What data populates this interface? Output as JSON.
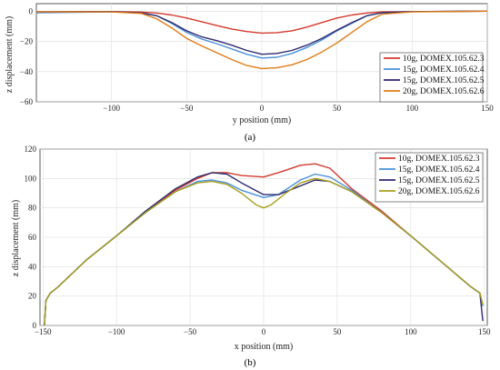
{
  "chart_data": [
    {
      "type": "line",
      "caption": "(a)",
      "xlabel": "y position (mm)",
      "ylabel": "z displacement (mm)",
      "xlim": [
        -150,
        150
      ],
      "ylim": [
        -60,
        5
      ],
      "xticks": [
        -100,
        -50,
        0,
        50,
        100,
        150
      ],
      "yticks": [
        0,
        -20,
        -40,
        -60
      ],
      "grid": true,
      "legend_position": "bottom-right",
      "series": [
        {
          "name": "10g, DOMEX.105.62.3",
          "color": "#d23a2e",
          "points": [
            [
              -150,
              -0.5
            ],
            [
              -100,
              -0.3
            ],
            [
              -80,
              -0.6
            ],
            [
              -70,
              -1.2
            ],
            [
              -60,
              -2.5
            ],
            [
              -50,
              -4.5
            ],
            [
              -40,
              -7.0
            ],
            [
              -30,
              -9.5
            ],
            [
              -20,
              -11.8
            ],
            [
              -10,
              -13.5
            ],
            [
              0,
              -14.5
            ],
            [
              10,
              -14.2
            ],
            [
              20,
              -13.0
            ],
            [
              30,
              -10.5
            ],
            [
              40,
              -7.5
            ],
            [
              50,
              -4.5
            ],
            [
              60,
              -2.5
            ],
            [
              70,
              -1.2
            ],
            [
              80,
              -0.5
            ],
            [
              100,
              -0.3
            ],
            [
              150,
              0
            ]
          ]
        },
        {
          "name": "15g, DOMEX.105.62.4",
          "color": "#4a90d9",
          "points": [
            [
              -150,
              -1
            ],
            [
              -100,
              -0.5
            ],
            [
              -80,
              -1.2
            ],
            [
              -70,
              -3
            ],
            [
              -60,
              -8
            ],
            [
              -50,
              -14
            ],
            [
              -40,
              -18.5
            ],
            [
              -30,
              -21.5
            ],
            [
              -20,
              -25
            ],
            [
              -10,
              -28.5
            ],
            [
              0,
              -31
            ],
            [
              10,
              -30.5
            ],
            [
              20,
              -28
            ],
            [
              30,
              -24
            ],
            [
              40,
              -19
            ],
            [
              50,
              -13
            ],
            [
              60,
              -8
            ],
            [
              70,
              -3
            ],
            [
              80,
              -1
            ],
            [
              100,
              -0.3
            ],
            [
              150,
              0
            ]
          ]
        },
        {
          "name": "15g, DOMEX.105.62.5",
          "color": "#2e2a6e",
          "points": [
            [
              -150,
              -0.5
            ],
            [
              -100,
              -0.3
            ],
            [
              -80,
              -1.2
            ],
            [
              -70,
              -3
            ],
            [
              -60,
              -7.5
            ],
            [
              -50,
              -13
            ],
            [
              -40,
              -17
            ],
            [
              -30,
              -19.5
            ],
            [
              -20,
              -22.5
            ],
            [
              -10,
              -26
            ],
            [
              0,
              -28.5
            ],
            [
              10,
              -28
            ],
            [
              20,
              -26
            ],
            [
              30,
              -22.5
            ],
            [
              40,
              -18
            ],
            [
              50,
              -12.5
            ],
            [
              60,
              -7.5
            ],
            [
              70,
              -3
            ],
            [
              80,
              -1
            ],
            [
              100,
              -0.3
            ],
            [
              150,
              0
            ]
          ]
        },
        {
          "name": "20g, DOMEX.105.62.6",
          "color": "#e07b16",
          "points": [
            [
              -150,
              -0.5
            ],
            [
              -100,
              -0.5
            ],
            [
              -80,
              -1.5
            ],
            [
              -70,
              -5
            ],
            [
              -60,
              -11
            ],
            [
              -50,
              -18
            ],
            [
              -40,
              -23
            ],
            [
              -30,
              -27.5
            ],
            [
              -20,
              -32
            ],
            [
              -10,
              -36
            ],
            [
              0,
              -38
            ],
            [
              10,
              -37.5
            ],
            [
              20,
              -35.5
            ],
            [
              30,
              -32
            ],
            [
              40,
              -27
            ],
            [
              50,
              -21
            ],
            [
              60,
              -14
            ],
            [
              70,
              -7
            ],
            [
              80,
              -2
            ],
            [
              100,
              -0.5
            ],
            [
              150,
              0
            ]
          ]
        }
      ]
    },
    {
      "type": "line",
      "caption": "(b)",
      "xlabel": "x position (mm)",
      "ylabel": "z displacement (mm)",
      "xlim": [
        -152,
        152
      ],
      "ylim": [
        0,
        120
      ],
      "xticks": [
        -150,
        -100,
        -50,
        0,
        50,
        100,
        150
      ],
      "yticks": [
        0,
        20,
        40,
        60,
        80,
        100,
        120
      ],
      "grid": true,
      "legend_position": "top-right",
      "series": [
        {
          "name": "10g, DOMEX.105.62.3",
          "color": "#d23a2e",
          "points": [
            [
              -149,
              0
            ],
            [
              -148,
              17
            ],
            [
              -145,
              22
            ],
            [
              -140,
              26
            ],
            [
              -120,
              45
            ],
            [
              -100,
              61
            ],
            [
              -80,
              77
            ],
            [
              -60,
              92
            ],
            [
              -45,
              100
            ],
            [
              -35,
              104
            ],
            [
              -25,
              104
            ],
            [
              -15,
              102
            ],
            [
              0,
              101
            ],
            [
              10,
              104
            ],
            [
              25,
              109
            ],
            [
              35,
              110
            ],
            [
              45,
              107
            ],
            [
              60,
              93
            ],
            [
              80,
              78
            ],
            [
              100,
              61
            ],
            [
              120,
              44
            ],
            [
              140,
              27
            ],
            [
              147,
              22
            ],
            [
              149,
              14
            ]
          ]
        },
        {
          "name": "15g, DOMEX.105.62.4",
          "color": "#4a90d9",
          "points": [
            [
              -149,
              0
            ],
            [
              -148,
              17
            ],
            [
              -145,
              22
            ],
            [
              -140,
              26
            ],
            [
              -120,
              45
            ],
            [
              -100,
              61
            ],
            [
              -80,
              77
            ],
            [
              -60,
              91
            ],
            [
              -45,
              98
            ],
            [
              -35,
              99
            ],
            [
              -25,
              97
            ],
            [
              -15,
              92
            ],
            [
              0,
              87
            ],
            [
              10,
              89
            ],
            [
              25,
              99
            ],
            [
              35,
              103
            ],
            [
              45,
              101
            ],
            [
              60,
              92
            ],
            [
              80,
              77
            ],
            [
              100,
              61
            ],
            [
              120,
              44
            ],
            [
              140,
              27
            ],
            [
              147,
              22
            ],
            [
              149,
              13
            ]
          ]
        },
        {
          "name": "15g, DOMEX.105.62.5",
          "color": "#2e2a6e",
          "points": [
            [
              -149,
              0
            ],
            [
              -148,
              17
            ],
            [
              -145,
              22
            ],
            [
              -140,
              26
            ],
            [
              -120,
              45
            ],
            [
              -100,
              61
            ],
            [
              -80,
              78
            ],
            [
              -60,
              93
            ],
            [
              -45,
              101
            ],
            [
              -35,
              104
            ],
            [
              -25,
              103
            ],
            [
              -15,
              97
            ],
            [
              0,
              89
            ],
            [
              10,
              89
            ],
            [
              20,
              93
            ],
            [
              35,
              99
            ],
            [
              45,
              98
            ],
            [
              60,
              91
            ],
            [
              80,
              77
            ],
            [
              100,
              61
            ],
            [
              120,
              44
            ],
            [
              140,
              27
            ],
            [
              147,
              22
            ],
            [
              149,
              3
            ]
          ]
        },
        {
          "name": "20g, DOMEX.105.62.6",
          "color": "#a8a01e",
          "points": [
            [
              -149,
              0
            ],
            [
              -148,
              17
            ],
            [
              -145,
              22
            ],
            [
              -140,
              26
            ],
            [
              -120,
              45
            ],
            [
              -100,
              61
            ],
            [
              -80,
              77
            ],
            [
              -60,
              91
            ],
            [
              -45,
              97
            ],
            [
              -35,
              98
            ],
            [
              -25,
              96
            ],
            [
              -15,
              90
            ],
            [
              -5,
              82
            ],
            [
              0,
              80
            ],
            [
              5,
              82
            ],
            [
              15,
              90
            ],
            [
              25,
              97
            ],
            [
              35,
              100
            ],
            [
              45,
              98
            ],
            [
              60,
              91
            ],
            [
              80,
              77
            ],
            [
              100,
              61
            ],
            [
              120,
              44
            ],
            [
              140,
              27
            ],
            [
              147,
              22
            ],
            [
              149,
              14
            ]
          ]
        }
      ]
    }
  ]
}
